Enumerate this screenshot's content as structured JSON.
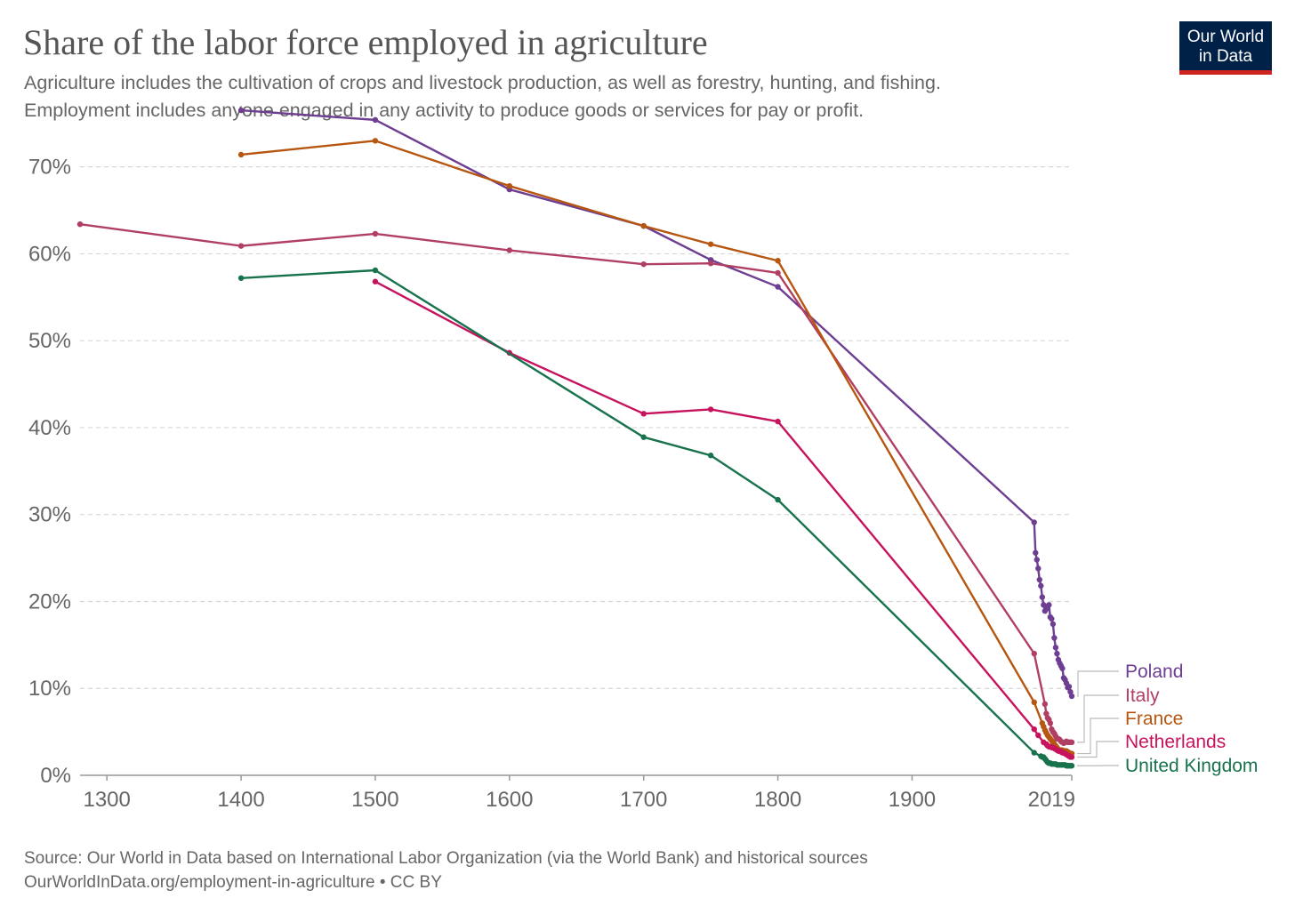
{
  "header": {
    "title": "Share of the labor force employed in agriculture",
    "subtitle_line1": "Agriculture includes the cultivation of crops and livestock production, as well as forestry, hunting, and fishing.",
    "subtitle_line2": "Employment includes anyone engaged in any activity to produce goods or services for pay or profit."
  },
  "logo": {
    "line1": "Our World",
    "line2": "in Data",
    "bg_color": "#002147",
    "accent_color": "#ce261e"
  },
  "footer": {
    "source": "Source: Our World in Data based on International Labor Organization (via the World Bank) and historical sources",
    "url": "OurWorldInData.org/employment-in-agriculture • CC BY"
  },
  "chart_data": {
    "type": "line",
    "title": "Share of the labor force employed in agriculture",
    "xlabel": "",
    "ylabel": "",
    "xlim": [
      1280,
      2019
    ],
    "ylim": [
      0,
      76
    ],
    "grid": "horizontal-dashed",
    "legend_placement": "right-end-labels",
    "x_ticks": [
      1300,
      1400,
      1500,
      1600,
      1700,
      1800,
      1900,
      2019
    ],
    "x_tick_labels": [
      "1300",
      "1400",
      "1500",
      "1600",
      "1700",
      "1800",
      "1900",
      "2019"
    ],
    "y_ticks": [
      0,
      10,
      20,
      30,
      40,
      50,
      60,
      70
    ],
    "y_tick_labels": [
      "0%",
      "10%",
      "20%",
      "30%",
      "40%",
      "50%",
      "60%",
      "70%"
    ],
    "series": [
      {
        "name": "Poland",
        "color": "#6d3e91",
        "points": [
          [
            1400,
            76.5
          ],
          [
            1500,
            75.4
          ],
          [
            1600,
            67.4
          ],
          [
            1700,
            63.2
          ],
          [
            1750,
            59.3
          ],
          [
            1800,
            56.2
          ],
          [
            1991,
            29.1
          ],
          [
            1992,
            25.6
          ],
          [
            1993,
            24.8
          ],
          [
            1994,
            23.8
          ],
          [
            1995,
            22.5
          ],
          [
            1996,
            21.8
          ],
          [
            1997,
            20.5
          ],
          [
            1998,
            19.6
          ],
          [
            1999,
            18.9
          ],
          [
            2000,
            19.4
          ],
          [
            2001,
            19.2
          ],
          [
            2002,
            19.6
          ],
          [
            2003,
            18.2
          ],
          [
            2004,
            18.0
          ],
          [
            2005,
            17.4
          ],
          [
            2006,
            15.8
          ],
          [
            2007,
            14.7
          ],
          [
            2008,
            14.0
          ],
          [
            2009,
            13.3
          ],
          [
            2010,
            12.9
          ],
          [
            2011,
            12.6
          ],
          [
            2012,
            12.3
          ],
          [
            2013,
            11.2
          ],
          [
            2014,
            11.0
          ],
          [
            2015,
            10.6
          ],
          [
            2016,
            10.1
          ],
          [
            2017,
            10.2
          ],
          [
            2018,
            9.6
          ],
          [
            2019,
            9.1
          ]
        ]
      },
      {
        "name": "Italy",
        "color": "#b13f64",
        "points": [
          [
            1280,
            63.4
          ],
          [
            1400,
            60.9
          ],
          [
            1500,
            62.3
          ],
          [
            1600,
            60.4
          ],
          [
            1700,
            58.8
          ],
          [
            1750,
            58.9
          ],
          [
            1800,
            57.8
          ],
          [
            1991,
            14.0
          ],
          [
            1999,
            8.2
          ],
          [
            2000,
            7.1
          ],
          [
            2001,
            6.6
          ],
          [
            2002,
            6.4
          ],
          [
            2003,
            6.0
          ],
          [
            2004,
            5.3
          ],
          [
            2005,
            5.0
          ],
          [
            2006,
            4.8
          ],
          [
            2007,
            4.5
          ],
          [
            2008,
            4.2
          ],
          [
            2009,
            4.2
          ],
          [
            2010,
            4.1
          ],
          [
            2011,
            3.9
          ],
          [
            2012,
            3.8
          ],
          [
            2013,
            3.7
          ],
          [
            2014,
            3.8
          ],
          [
            2015,
            3.9
          ],
          [
            2016,
            3.8
          ],
          [
            2017,
            3.8
          ],
          [
            2018,
            3.8
          ],
          [
            2019,
            3.8
          ]
        ]
      },
      {
        "name": "France",
        "color": "#b65610",
        "points": [
          [
            1400,
            71.4
          ],
          [
            1500,
            73.0
          ],
          [
            1600,
            67.8
          ],
          [
            1700,
            63.2
          ],
          [
            1750,
            61.1
          ],
          [
            1800,
            59.2
          ],
          [
            1991,
            8.4
          ],
          [
            1997,
            6.0
          ],
          [
            1998,
            5.6
          ],
          [
            1999,
            5.2
          ],
          [
            2000,
            4.9
          ],
          [
            2001,
            4.6
          ],
          [
            2002,
            4.4
          ],
          [
            2003,
            4.2
          ],
          [
            2004,
            4.0
          ],
          [
            2005,
            3.8
          ],
          [
            2006,
            3.6
          ],
          [
            2007,
            3.4
          ],
          [
            2008,
            3.2
          ],
          [
            2009,
            3.0
          ],
          [
            2010,
            2.9
          ],
          [
            2011,
            2.9
          ],
          [
            2012,
            2.9
          ],
          [
            2013,
            2.8
          ],
          [
            2014,
            2.8
          ],
          [
            2015,
            2.8
          ],
          [
            2016,
            2.7
          ],
          [
            2017,
            2.6
          ],
          [
            2018,
            2.5
          ],
          [
            2019,
            2.5
          ]
        ]
      },
      {
        "name": "Netherlands",
        "color": "#c7135d",
        "points": [
          [
            1500,
            56.8
          ],
          [
            1600,
            48.6
          ],
          [
            1700,
            41.6
          ],
          [
            1750,
            42.1
          ],
          [
            1800,
            40.7
          ],
          [
            1991,
            5.3
          ],
          [
            1994,
            4.6
          ],
          [
            1998,
            3.8
          ],
          [
            2000,
            3.6
          ],
          [
            2001,
            3.4
          ],
          [
            2002,
            3.3
          ],
          [
            2003,
            3.3
          ],
          [
            2004,
            3.2
          ],
          [
            2005,
            3.2
          ],
          [
            2006,
            3.1
          ],
          [
            2007,
            3.0
          ],
          [
            2008,
            2.9
          ],
          [
            2009,
            2.8
          ],
          [
            2010,
            2.8
          ],
          [
            2011,
            2.7
          ],
          [
            2012,
            2.6
          ],
          [
            2013,
            2.6
          ],
          [
            2014,
            2.5
          ],
          [
            2015,
            2.4
          ],
          [
            2016,
            2.3
          ],
          [
            2017,
            2.2
          ],
          [
            2018,
            2.1
          ],
          [
            2019,
            2.1
          ]
        ]
      },
      {
        "name": "United Kingdom",
        "color": "#18734d",
        "points": [
          [
            1400,
            57.2
          ],
          [
            1500,
            58.1
          ],
          [
            1700,
            38.9
          ],
          [
            1750,
            36.8
          ],
          [
            1800,
            31.7
          ],
          [
            1991,
            2.6
          ],
          [
            1996,
            2.2
          ],
          [
            1997,
            2.1
          ],
          [
            1998,
            2.1
          ],
          [
            1999,
            1.9
          ],
          [
            2000,
            1.7
          ],
          [
            2001,
            1.5
          ],
          [
            2002,
            1.4
          ],
          [
            2003,
            1.4
          ],
          [
            2004,
            1.3
          ],
          [
            2005,
            1.3
          ],
          [
            2006,
            1.3
          ],
          [
            2007,
            1.3
          ],
          [
            2008,
            1.2
          ],
          [
            2009,
            1.2
          ],
          [
            2010,
            1.2
          ],
          [
            2011,
            1.2
          ],
          [
            2012,
            1.2
          ],
          [
            2013,
            1.2
          ],
          [
            2014,
            1.2
          ],
          [
            2015,
            1.1
          ],
          [
            2016,
            1.1
          ],
          [
            2017,
            1.1
          ],
          [
            2018,
            1.1
          ],
          [
            2019,
            1.1
          ]
        ]
      }
    ]
  }
}
